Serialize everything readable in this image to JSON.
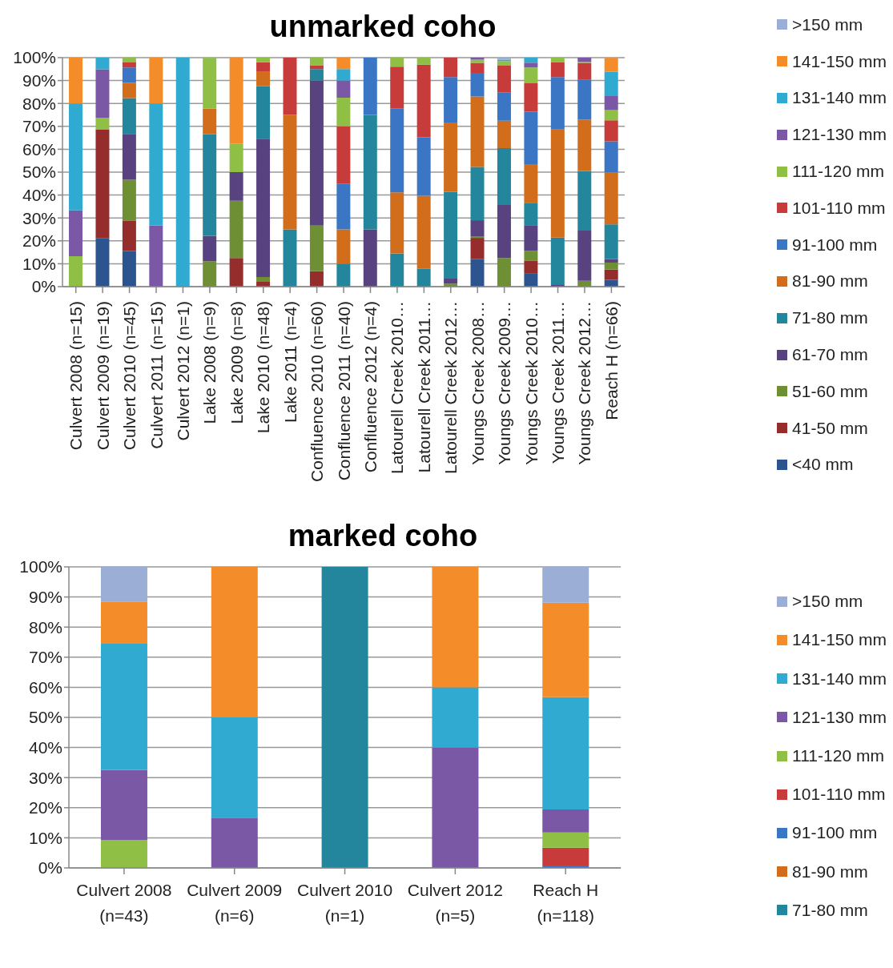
{
  "chart_data": [
    {
      "type": "bar",
      "title": "unmarked coho",
      "stacked": true,
      "grid": "y",
      "legend": "right",
      "categories": [
        "Culvert 2008 (n=15)",
        "Culvert 2009 (n=19)",
        "Culvert 2010 (n=45)",
        "Culvert 2011 (n=15)",
        "Culvert 2012 (n=1)",
        "Lake 2008 (n=9)",
        "Lake 2009 (n=8)",
        "Lake 2010 (n=48)",
        "Lake 2011 (n=4)",
        "Confluence 2010 (n=60)",
        "Confluence 2011 (n=40)",
        "Confluence 2012 (n=4)",
        "Latourell Creek 2010…",
        "Latourell Creek 2011…",
        "Latourell Creek 2012…",
        "Youngs Creek 2008…",
        "Youngs Creek 2009…",
        "Youngs Creek 2010…",
        "Youngs Creek 2011…",
        "Youngs Creek 2012…",
        "Reach H (n=66)"
      ],
      "ylim": [
        0,
        100
      ],
      "yticks": [
        {
          "value": 0,
          "label": "0%"
        },
        {
          "value": 10,
          "label": "10%"
        },
        {
          "value": 20,
          "label": "20%"
        },
        {
          "value": 30,
          "label": "30%"
        },
        {
          "value": 40,
          "label": "40%"
        },
        {
          "value": 50,
          "label": "50%"
        },
        {
          "value": 60,
          "label": "60%"
        },
        {
          "value": 70,
          "label": "70%"
        },
        {
          "value": 80,
          "label": "80%"
        },
        {
          "value": 90,
          "label": "90%"
        },
        {
          "value": 100,
          "label": "100%"
        }
      ],
      "series": [
        {
          "name": "<40 mm",
          "color": "#2c5590",
          "values": [
            null,
            21.1,
            15.6,
            null,
            null,
            null,
            null,
            null,
            null,
            null,
            null,
            null,
            null,
            null,
            null,
            12,
            null,
            5.9,
            null,
            null,
            3.0
          ]
        },
        {
          "name": "41-50 mm",
          "color": "#962d2d",
          "values": [
            null,
            47.4,
            13.3,
            null,
            null,
            null,
            12.5,
            2.1,
            null,
            6.7,
            null,
            null,
            null,
            null,
            null,
            9.3,
            null,
            5.5,
            null,
            null,
            4.5
          ]
        },
        {
          "name": "51-60 mm",
          "color": "#6e8f33",
          "values": [
            null,
            null,
            17.8,
            null,
            null,
            11.1,
            25,
            2.1,
            null,
            20,
            null,
            null,
            null,
            null,
            1.3,
            0.5,
            12.5,
            4.2,
            null,
            2.5,
            3.0
          ]
        },
        {
          "name": "61-70 mm",
          "color": "#58427f",
          "values": [
            null,
            null,
            20,
            null,
            null,
            11.1,
            12.5,
            60.4,
            null,
            63.3,
            null,
            25,
            null,
            null,
            2.2,
            7.2,
            23.2,
            11,
            1,
            22,
            1.5
          ]
        },
        {
          "name": "71-80 mm",
          "color": "#24869c",
          "values": [
            null,
            null,
            15.6,
            null,
            null,
            44.4,
            null,
            22.9,
            25,
            5,
            10,
            50,
            14.5,
            7.9,
            37.9,
            23.3,
            24.8,
            10,
            20.4,
            26,
            15.2
          ]
        },
        {
          "name": "81-90 mm",
          "color": "#d26d1c",
          "values": [
            null,
            null,
            6.7,
            null,
            null,
            11.1,
            null,
            6.3,
            50,
            null,
            15,
            null,
            26.7,
            31.8,
            30.3,
            30.7,
            12,
            16.9,
            47.2,
            22.4,
            22.7
          ]
        },
        {
          "name": "91-100 mm",
          "color": "#3a76c4",
          "values": [
            null,
            null,
            6.7,
            null,
            null,
            null,
            null,
            null,
            null,
            null,
            20,
            25,
            36.7,
            25.5,
            19.8,
            10.4,
            12.4,
            22.9,
            22.9,
            17.4,
            13.6
          ]
        },
        {
          "name": "101-110 mm",
          "color": "#c83b3b",
          "values": [
            null,
            null,
            2.2,
            null,
            null,
            null,
            null,
            4.2,
            25,
            1.7,
            25,
            null,
            18.2,
            31.7,
            8.5,
            4.3,
            11.6,
            12.4,
            6.6,
            7.4,
            9.1
          ]
        },
        {
          "name": "111-120 mm",
          "color": "#8fbf45",
          "values": [
            13.3,
            5.3,
            2.2,
            null,
            null,
            22.2,
            12.5,
            2.1,
            null,
            3.3,
            12.5,
            null,
            3.9,
            3.1,
            null,
            1.4,
            2,
            6.9,
            1.9,
            0.4,
            4.5
          ]
        },
        {
          "name": "121-130 mm",
          "color": "#7a58a6",
          "values": [
            20,
            21.1,
            null,
            26.7,
            null,
            null,
            null,
            null,
            null,
            null,
            7.5,
            null,
            null,
            null,
            null,
            0.9,
            null,
            2.1,
            null,
            1.9,
            6.1
          ]
        },
        {
          "name": "131-140 mm",
          "color": "#31aad2",
          "values": [
            46.7,
            5.3,
            null,
            53.3,
            100,
            null,
            null,
            null,
            null,
            null,
            5,
            null,
            null,
            null,
            null,
            null,
            0.6,
            2.2,
            null,
            null,
            10.6
          ]
        },
        {
          "name": "141-150 mm",
          "color": "#f48c2a",
          "values": [
            20,
            null,
            null,
            20,
            null,
            null,
            37.5,
            null,
            null,
            null,
            5,
            null,
            null,
            null,
            null,
            null,
            null,
            null,
            null,
            null,
            6.1
          ]
        },
        {
          "name": ">150 mm",
          "color": "#9aaed6",
          "values": [
            null,
            null,
            null,
            null,
            null,
            null,
            null,
            null,
            null,
            null,
            null,
            null,
            null,
            null,
            null,
            null,
            0.9,
            null,
            null,
            null,
            null
          ]
        }
      ]
    },
    {
      "type": "bar",
      "title": "marked coho",
      "stacked": true,
      "grid": "y",
      "legend": "right",
      "categories": [
        "Culvert 2008 (n=43)",
        "Culvert 2009 (n=6)",
        "Culvert 2010 (n=1)",
        "Culvert 2012 (n=5)",
        "Reach H (n=118)"
      ],
      "ylim": [
        0,
        100
      ],
      "yticks": [
        {
          "value": 0,
          "label": "0%"
        },
        {
          "value": 10,
          "label": "10%"
        },
        {
          "value": 20,
          "label": "20%"
        },
        {
          "value": 30,
          "label": "30%"
        },
        {
          "value": 40,
          "label": "40%"
        },
        {
          "value": 50,
          "label": "50%"
        },
        {
          "value": 60,
          "label": "60%"
        },
        {
          "value": 70,
          "label": "70%"
        },
        {
          "value": 80,
          "label": "80%"
        },
        {
          "value": 90,
          "label": "90%"
        },
        {
          "value": 100,
          "label": "100%"
        }
      ],
      "series": [
        {
          "name": "71-80 mm",
          "color": "#24869c",
          "values": [
            null,
            null,
            100,
            null,
            null
          ]
        },
        {
          "name": "81-90 mm",
          "color": "#d26d1c",
          "values": [
            null,
            null,
            null,
            null,
            null
          ]
        },
        {
          "name": "91-100 mm",
          "color": "#3a76c4",
          "values": [
            null,
            null,
            null,
            null,
            0.8
          ]
        },
        {
          "name": "101-110 mm",
          "color": "#c83b3b",
          "values": [
            null,
            null,
            null,
            null,
            5.9
          ]
        },
        {
          "name": "111-120 mm",
          "color": "#8fbf45",
          "values": [
            9.3,
            null,
            null,
            null,
            5.1
          ]
        },
        {
          "name": "121-130 mm",
          "color": "#7a58a6",
          "values": [
            23.3,
            16.7,
            null,
            40,
            7.6
          ]
        },
        {
          "name": "131-140 mm",
          "color": "#31aad2",
          "values": [
            41.9,
            33.3,
            null,
            20,
            37.3
          ]
        },
        {
          "name": "141-150 mm",
          "color": "#f48c2a",
          "values": [
            14,
            50,
            null,
            40,
            31.4
          ]
        },
        {
          "name": ">150 mm",
          "color": "#9aaed6",
          "values": [
            11.6,
            null,
            null,
            null,
            11.9
          ]
        }
      ]
    }
  ]
}
